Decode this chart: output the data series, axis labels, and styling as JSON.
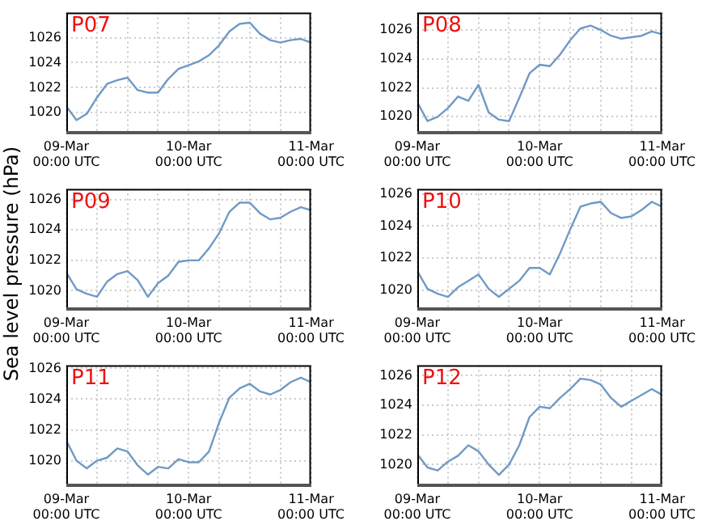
{
  "chart_data": [
    {
      "type": "line",
      "title": "P07",
      "x": [
        "--03-09T00:00",
        "--03-09T02:00",
        "--03-09T04:00",
        "--03-09T06:00",
        "--03-09T08:00",
        "--03-09T10:00",
        "--03-09T12:00",
        "--03-09T14:00",
        "--03-09T16:00",
        "--03-09T18:00",
        "--03-09T20:00",
        "--03-09T22:00",
        "--03-10T00:00",
        "--03-10T02:00",
        "--03-10T04:00",
        "--03-10T06:00",
        "--03-10T08:00",
        "--03-10T10:00",
        "--03-10T12:00",
        "--03-10T14:00",
        "--03-10T16:00",
        "--03-10T18:00",
        "--03-10T20:00",
        "--03-10T22:00",
        "--03-11T00:00"
      ],
      "values": [
        1020.5,
        1019.4,
        1019.9,
        1021.2,
        1022.3,
        1022.6,
        1022.8,
        1021.8,
        1021.6,
        1021.6,
        1022.7,
        1023.5,
        1023.8,
        1024.1,
        1024.6,
        1025.4,
        1026.5,
        1027.1,
        1027.2,
        1026.3,
        1025.8,
        1025.6,
        1025.8,
        1025.9,
        1025.6
      ],
      "color": "#6f9ac6",
      "xlim": [
        "--03-09T00:00",
        "--03-11T00:00"
      ],
      "xticks": [
        {
          "value": "--03-09T00:00",
          "label": "09-Mar\n00:00 UTC"
        },
        {
          "value": "--03-09T06:00",
          "label": null
        },
        {
          "value": "--03-09T12:00",
          "label": null
        },
        {
          "value": "--03-09T18:00",
          "label": null
        },
        {
          "value": "--03-10T00:00",
          "label": "10-Mar\n00:00 UTC"
        },
        {
          "value": "--03-10T06:00",
          "label": null
        },
        {
          "value": "--03-10T12:00",
          "label": null
        },
        {
          "value": "--03-10T18:00",
          "label": null
        },
        {
          "value": "--03-11T00:00",
          "label": "11-Mar\n00:00 UTC"
        }
      ],
      "ylim": [
        1018.4,
        1028.0
      ],
      "yticks": [
        1020,
        1022,
        1024,
        1026
      ],
      "grid": true,
      "marker": "none"
    },
    {
      "type": "line",
      "title": "P08",
      "x": [
        "--03-09T00:00",
        "--03-09T02:00",
        "--03-09T04:00",
        "--03-09T06:00",
        "--03-09T08:00",
        "--03-09T10:00",
        "--03-09T12:00",
        "--03-09T14:00",
        "--03-09T16:00",
        "--03-09T18:00",
        "--03-09T20:00",
        "--03-09T22:00",
        "--03-10T00:00",
        "--03-10T02:00",
        "--03-10T04:00",
        "--03-10T06:00",
        "--03-10T08:00",
        "--03-10T10:00",
        "--03-10T12:00",
        "--03-10T14:00",
        "--03-10T16:00",
        "--03-10T18:00",
        "--03-10T20:00",
        "--03-10T22:00",
        "--03-11T00:00"
      ],
      "values": [
        1021.0,
        1019.7,
        1020.0,
        1020.6,
        1021.4,
        1021.1,
        1022.2,
        1020.3,
        1019.8,
        1019.7,
        1021.3,
        1023.0,
        1023.6,
        1023.5,
        1024.3,
        1025.3,
        1026.1,
        1026.3,
        1026.0,
        1025.6,
        1025.4,
        1025.5,
        1025.6,
        1025.9,
        1025.7
      ],
      "color": "#6f9ac6",
      "xlim": [
        "--03-09T00:00",
        "--03-11T00:00"
      ],
      "xticks": [
        {
          "value": "--03-09T00:00",
          "label": "09-Mar\n00:00 UTC"
        },
        {
          "value": "--03-09T06:00",
          "label": null
        },
        {
          "value": "--03-09T12:00",
          "label": null
        },
        {
          "value": "--03-09T18:00",
          "label": null
        },
        {
          "value": "--03-10T00:00",
          "label": "10-Mar\n00:00 UTC"
        },
        {
          "value": "--03-10T06:00",
          "label": null
        },
        {
          "value": "--03-10T12:00",
          "label": null
        },
        {
          "value": "--03-10T18:00",
          "label": null
        },
        {
          "value": "--03-11T00:00",
          "label": "11-Mar\n00:00 UTC"
        }
      ],
      "ylim": [
        1018.9,
        1027.2
      ],
      "yticks": [
        1020,
        1022,
        1024,
        1026
      ],
      "grid": true,
      "marker": "none"
    },
    {
      "type": "line",
      "title": "P09",
      "ylabel": "Sea level pressure (hPa)",
      "x": [
        "--03-09T00:00",
        "--03-09T02:00",
        "--03-09T04:00",
        "--03-09T06:00",
        "--03-09T08:00",
        "--03-09T10:00",
        "--03-09T12:00",
        "--03-09T14:00",
        "--03-09T16:00",
        "--03-09T18:00",
        "--03-09T20:00",
        "--03-09T22:00",
        "--03-10T00:00",
        "--03-10T02:00",
        "--03-10T04:00",
        "--03-10T06:00",
        "--03-10T08:00",
        "--03-10T10:00",
        "--03-10T12:00",
        "--03-10T14:00",
        "--03-10T16:00",
        "--03-10T18:00",
        "--03-10T20:00",
        "--03-10T22:00",
        "--03-11T00:00"
      ],
      "values": [
        1021.2,
        1020.1,
        1019.8,
        1019.6,
        1020.6,
        1021.1,
        1021.3,
        1020.7,
        1019.6,
        1020.5,
        1021.0,
        1021.9,
        1022.0,
        1022.0,
        1022.8,
        1023.8,
        1025.2,
        1025.8,
        1025.8,
        1025.1,
        1024.7,
        1024.8,
        1025.2,
        1025.5,
        1025.3
      ],
      "color": "#6f9ac6",
      "xlim": [
        "--03-09T00:00",
        "--03-11T00:00"
      ],
      "xticks": [
        {
          "value": "--03-09T00:00",
          "label": "09-Mar\n00:00 UTC"
        },
        {
          "value": "--03-09T06:00",
          "label": null
        },
        {
          "value": "--03-09T12:00",
          "label": null
        },
        {
          "value": "--03-09T18:00",
          "label": null
        },
        {
          "value": "--03-10T00:00",
          "label": "10-Mar\n00:00 UTC"
        },
        {
          "value": "--03-10T06:00",
          "label": null
        },
        {
          "value": "--03-10T12:00",
          "label": null
        },
        {
          "value": "--03-10T18:00",
          "label": null
        },
        {
          "value": "--03-11T00:00",
          "label": "11-Mar\n00:00 UTC"
        }
      ],
      "ylim": [
        1018.8,
        1026.7
      ],
      "yticks": [
        1020,
        1022,
        1024,
        1026
      ],
      "grid": true,
      "marker": "none"
    },
    {
      "type": "line",
      "title": "P10",
      "x": [
        "--03-09T00:00",
        "--03-09T02:00",
        "--03-09T04:00",
        "--03-09T06:00",
        "--03-09T08:00",
        "--03-09T10:00",
        "--03-09T12:00",
        "--03-09T14:00",
        "--03-09T16:00",
        "--03-09T18:00",
        "--03-09T20:00",
        "--03-09T22:00",
        "--03-10T00:00",
        "--03-10T02:00",
        "--03-10T04:00",
        "--03-10T06:00",
        "--03-10T08:00",
        "--03-10T10:00",
        "--03-10T12:00",
        "--03-10T14:00",
        "--03-10T16:00",
        "--03-10T18:00",
        "--03-10T20:00",
        "--03-10T22:00",
        "--03-11T00:00"
      ],
      "values": [
        1021.2,
        1020.1,
        1019.8,
        1019.6,
        1020.2,
        1020.6,
        1021.0,
        1020.1,
        1019.6,
        1020.1,
        1020.6,
        1021.4,
        1021.4,
        1021.0,
        1022.3,
        1023.8,
        1025.2,
        1025.4,
        1025.5,
        1024.8,
        1024.5,
        1024.6,
        1025.0,
        1025.5,
        1025.2
      ],
      "color": "#6f9ac6",
      "xlim": [
        "--03-09T00:00",
        "--03-11T00:00"
      ],
      "xticks": [
        {
          "value": "--03-09T00:00",
          "label": "09-Mar\n00:00 UTC"
        },
        {
          "value": "--03-09T06:00",
          "label": null
        },
        {
          "value": "--03-09T12:00",
          "label": null
        },
        {
          "value": "--03-09T18:00",
          "label": null
        },
        {
          "value": "--03-10T00:00",
          "label": "10-Mar\n00:00 UTC"
        },
        {
          "value": "--03-10T06:00",
          "label": null
        },
        {
          "value": "--03-10T12:00",
          "label": null
        },
        {
          "value": "--03-10T18:00",
          "label": null
        },
        {
          "value": "--03-11T00:00",
          "label": "11-Mar\n00:00 UTC"
        }
      ],
      "ylim": [
        1018.85,
        1026.3
      ],
      "yticks": [
        1020,
        1022,
        1024,
        1026
      ],
      "grid": true,
      "marker": "none"
    },
    {
      "type": "line",
      "title": "P11",
      "x": [
        "--03-09T00:00",
        "--03-09T02:00",
        "--03-09T04:00",
        "--03-09T06:00",
        "--03-09T08:00",
        "--03-09T10:00",
        "--03-09T12:00",
        "--03-09T14:00",
        "--03-09T16:00",
        "--03-09T18:00",
        "--03-09T20:00",
        "--03-09T22:00",
        "--03-10T00:00",
        "--03-10T02:00",
        "--03-10T04:00",
        "--03-10T06:00",
        "--03-10T08:00",
        "--03-10T10:00",
        "--03-10T12:00",
        "--03-10T14:00",
        "--03-10T16:00",
        "--03-10T18:00",
        "--03-10T20:00",
        "--03-10T22:00",
        "--03-11T00:00"
      ],
      "values": [
        1021.3,
        1020.0,
        1019.5,
        1020.0,
        1020.2,
        1020.8,
        1020.6,
        1019.7,
        1019.1,
        1019.6,
        1019.5,
        1020.1,
        1019.9,
        1019.9,
        1020.6,
        1022.5,
        1024.1,
        1024.7,
        1025.0,
        1024.5,
        1024.3,
        1024.6,
        1025.1,
        1025.4,
        1025.1
      ],
      "color": "#6f9ac6",
      "xlim": [
        "--03-09T00:00",
        "--03-11T00:00"
      ],
      "xticks": [
        {
          "value": "--03-09T00:00",
          "label": "09-Mar\n00:00 UTC"
        },
        {
          "value": "--03-09T06:00",
          "label": null
        },
        {
          "value": "--03-09T12:00",
          "label": null
        },
        {
          "value": "--03-09T18:00",
          "label": null
        },
        {
          "value": "--03-10T00:00",
          "label": "10-Mar\n00:00 UTC"
        },
        {
          "value": "--03-10T06:00",
          "label": null
        },
        {
          "value": "--03-10T12:00",
          "label": null
        },
        {
          "value": "--03-10T18:00",
          "label": null
        },
        {
          "value": "--03-11T00:00",
          "label": "11-Mar\n00:00 UTC"
        }
      ],
      "ylim": [
        1018.4,
        1026.2
      ],
      "yticks": [
        1020,
        1022,
        1024,
        1026
      ],
      "grid": true,
      "marker": "none"
    },
    {
      "type": "line",
      "title": "P12",
      "x": [
        "--03-09T00:00",
        "--03-09T02:00",
        "--03-09T04:00",
        "--03-09T06:00",
        "--03-09T08:00",
        "--03-09T10:00",
        "--03-09T12:00",
        "--03-09T14:00",
        "--03-09T16:00",
        "--03-09T18:00",
        "--03-09T20:00",
        "--03-09T22:00",
        "--03-10T00:00",
        "--03-10T02:00",
        "--03-10T04:00",
        "--03-10T06:00",
        "--03-10T08:00",
        "--03-10T10:00",
        "--03-10T12:00",
        "--03-10T14:00",
        "--03-10T16:00",
        "--03-10T18:00",
        "--03-10T20:00",
        "--03-10T22:00",
        "--03-11T00:00"
      ],
      "values": [
        1020.7,
        1019.8,
        1019.6,
        1020.2,
        1020.6,
        1021.3,
        1020.9,
        1020.0,
        1019.3,
        1020.0,
        1021.3,
        1023.2,
        1023.9,
        1023.8,
        1024.5,
        1025.1,
        1025.8,
        1025.7,
        1025.4,
        1024.5,
        1023.9,
        1024.3,
        1024.7,
        1025.1,
        1024.7
      ],
      "color": "#6f9ac6",
      "xlim": [
        "--03-09T00:00",
        "--03-11T00:00"
      ],
      "xticks": [
        {
          "value": "--03-09T00:00",
          "label": "09-Mar\n00:00 UTC"
        },
        {
          "value": "--03-09T06:00",
          "label": null
        },
        {
          "value": "--03-09T12:00",
          "label": null
        },
        {
          "value": "--03-09T18:00",
          "label": null
        },
        {
          "value": "--03-10T00:00",
          "label": "10-Mar\n00:00 UTC"
        },
        {
          "value": "--03-10T06:00",
          "label": null
        },
        {
          "value": "--03-10T12:00",
          "label": null
        },
        {
          "value": "--03-10T18:00",
          "label": null
        },
        {
          "value": "--03-11T00:00",
          "label": "11-Mar\n00:00 UTC"
        }
      ],
      "ylim": [
        1018.6,
        1026.7
      ],
      "yticks": [
        1020,
        1022,
        1024,
        1026
      ],
      "grid": true,
      "marker": "none"
    }
  ]
}
